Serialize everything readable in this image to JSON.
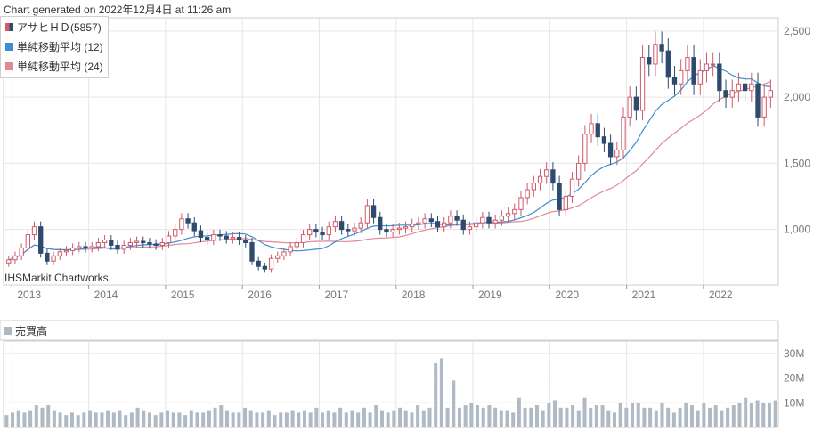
{
  "header": {
    "generated": "Chart generated on 2022年12月4日 at 11:26 am"
  },
  "watermark": "IHSMarkit Chartworks",
  "legend": [
    {
      "label": "アサヒＨＤ(5857)",
      "color": "#c0392b"
    },
    {
      "label": "単純移動平均 (12)",
      "color": "#3b8fcf"
    },
    {
      "label": "単純移動平均 (24)",
      "color": "#d97a88"
    }
  ],
  "volume_legend": {
    "label": "売買高",
    "color": "#b0b8c0"
  },
  "colors": {
    "up": "#d05a6a",
    "down": "#2e4a6e",
    "ma12": "#3b8fcf",
    "ma24": "#e08a98",
    "volume": "#b0bac4",
    "grid": "#e6e6e6"
  },
  "chart_data": [
    {
      "type": "candlestick",
      "title": "",
      "x_ticks": [
        "2013",
        "2014",
        "2015",
        "2016",
        "2017",
        "2018",
        "2019",
        "2020",
        "2021",
        "2022"
      ],
      "y_ticks": [
        "1,000",
        "1,500",
        "2,000",
        "2,500"
      ],
      "ylim": [
        580,
        2600
      ],
      "series": [
        {
          "name": "アサヒＨＤ(5857)",
          "kind": "ohlc_monthly",
          "x_start": "2012-12",
          "close_approx": [
            770,
            800,
            860,
            960,
            1020,
            820,
            760,
            800,
            830,
            840,
            860,
            870,
            860,
            870,
            900,
            920,
            880,
            850,
            880,
            900,
            910,
            900,
            890,
            880,
            900,
            950,
            1000,
            1080,
            1050,
            990,
            940,
            920,
            960,
            950,
            930,
            940,
            920,
            900,
            760,
            720,
            700,
            780,
            800,
            830,
            870,
            900,
            960,
            1000,
            980,
            960,
            1020,
            1060,
            1000,
            990,
            1010,
            1050,
            1180,
            1090,
            1000,
            980,
            1000,
            1010,
            1020,
            1040,
            1050,
            1080,
            1060,
            1020,
            1050,
            1100,
            1070,
            1000,
            1020,
            1050,
            1090,
            1050,
            1070,
            1100,
            1120,
            1150,
            1240,
            1300,
            1350,
            1400,
            1450,
            1350,
            1150,
            1250,
            1380,
            1500,
            1720,
            1800,
            1700,
            1650,
            1550,
            1600,
            1850,
            2000,
            1900,
            2300,
            2250,
            2400,
            2350,
            2150,
            2100,
            2200,
            2300,
            2100,
            2200,
            2250,
            2250,
            2050,
            2000,
            2050,
            2100,
            2050,
            2100,
            1850,
            2000,
            2050
          ]
        },
        {
          "name": "単純移動平均 (12)",
          "kind": "moving_average",
          "period": 12
        },
        {
          "name": "単純移動平均 (24)",
          "kind": "moving_average",
          "period": 24
        }
      ]
    },
    {
      "type": "bar",
      "title": "売買高",
      "y_ticks": [
        "10M",
        "20M",
        "30M"
      ],
      "ylim": [
        0,
        35000000
      ],
      "series": [
        {
          "name": "売買高",
          "values": [
            5,
            6,
            7,
            6,
            7,
            9,
            8,
            9,
            7,
            6,
            5,
            6,
            5,
            6,
            7,
            6,
            6,
            7,
            6,
            7,
            5,
            6,
            8,
            7,
            6,
            5,
            6,
            7,
            6,
            6,
            5,
            7,
            6,
            6,
            7,
            8,
            9,
            7,
            6,
            6,
            8,
            7,
            6,
            6,
            7,
            5,
            6,
            6,
            7,
            6,
            7,
            6,
            8,
            6,
            7,
            6,
            8,
            6,
            7,
            6,
            8,
            6,
            9,
            7,
            6,
            7,
            8,
            7,
            6,
            9,
            7,
            8,
            26,
            28,
            8,
            19,
            8,
            9,
            10,
            9,
            8,
            9,
            8,
            7,
            7,
            6,
            12,
            8,
            8,
            9,
            7,
            10,
            11,
            8,
            8,
            9,
            7,
            12,
            8,
            9,
            9,
            7,
            6,
            10,
            8,
            10,
            10,
            8,
            8,
            7,
            10,
            8,
            6,
            8,
            10,
            9,
            7,
            10,
            8,
            9,
            7,
            8,
            9,
            10,
            12,
            10,
            11,
            10,
            10,
            11
          ]
        }
      ]
    }
  ]
}
